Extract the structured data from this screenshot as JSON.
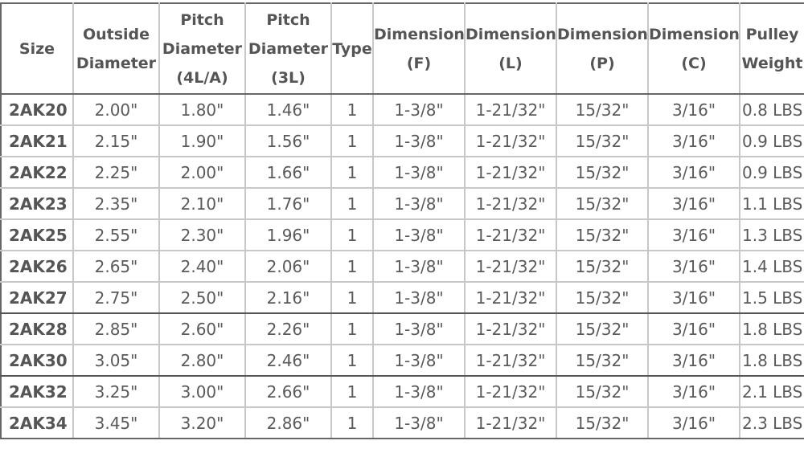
{
  "table": {
    "headers": [
      {
        "lines": [
          "Size"
        ]
      },
      {
        "lines": [
          "Outside",
          "Diameter"
        ]
      },
      {
        "lines": [
          "Pitch",
          "Diameter",
          "(4L/A)"
        ]
      },
      {
        "lines": [
          "Pitch",
          "Diameter",
          "(3L)"
        ]
      },
      {
        "lines": [
          "Type"
        ]
      },
      {
        "lines": [
          "Dimension",
          "(F)"
        ]
      },
      {
        "lines": [
          "Dimension",
          "(L)"
        ]
      },
      {
        "lines": [
          "Dimension",
          "(P)"
        ]
      },
      {
        "lines": [
          "Dimension",
          "(C)"
        ]
      },
      {
        "lines": [
          "Pulley",
          "Weight"
        ]
      }
    ],
    "rows": [
      [
        "2AK20",
        "2.00\"",
        "1.80\"",
        "1.46\"",
        "1",
        "1-3/8\"",
        "1-21/32\"",
        "15/32\"",
        "3/16\"",
        "0.8 LBS"
      ],
      [
        "2AK21",
        "2.15\"",
        "1.90\"",
        "1.56\"",
        "1",
        "1-3/8\"",
        "1-21/32\"",
        "15/32\"",
        "3/16\"",
        "0.9 LBS"
      ],
      [
        "2AK22",
        "2.25\"",
        "2.00\"",
        "1.66\"",
        "1",
        "1-3/8\"",
        "1-21/32\"",
        "15/32\"",
        "3/16\"",
        "0.9 LBS"
      ],
      [
        "2AK23",
        "2.35\"",
        "2.10\"",
        "1.76\"",
        "1",
        "1-3/8\"",
        "1-21/32\"",
        "15/32\"",
        "3/16\"",
        "1.1 LBS"
      ],
      [
        "2AK25",
        "2.55\"",
        "2.30\"",
        "1.96\"",
        "1",
        "1-3/8\"",
        "1-21/32\"",
        "15/32\"",
        "3/16\"",
        "1.3 LBS"
      ],
      [
        "2AK26",
        "2.65\"",
        "2.40\"",
        "2.06\"",
        "1",
        "1-3/8\"",
        "1-21/32\"",
        "15/32\"",
        "3/16\"",
        "1.4 LBS"
      ],
      [
        "2AK27",
        "2.75\"",
        "2.50\"",
        "2.16\"",
        "1",
        "1-3/8\"",
        "1-21/32\"",
        "15/32\"",
        "3/16\"",
        "1.5 LBS"
      ],
      [
        "2AK28",
        "2.85\"",
        "2.60\"",
        "2.26\"",
        "1",
        "1-3/8\"",
        "1-21/32\"",
        "15/32\"",
        "3/16\"",
        "1.8 LBS"
      ],
      [
        "2AK30",
        "3.05\"",
        "2.80\"",
        "2.46\"",
        "1",
        "1-3/8\"",
        "1-21/32\"",
        "15/32\"",
        "3/16\"",
        "1.8 LBS"
      ],
      [
        "2AK32",
        "3.25\"",
        "3.00\"",
        "2.66\"",
        "1",
        "1-3/8\"",
        "1-21/32\"",
        "15/32\"",
        "3/16\"",
        "2.1 LBS"
      ],
      [
        "2AK34",
        "3.45\"",
        "3.20\"",
        "2.86\"",
        "1",
        "1-3/8\"",
        "1-21/32\"",
        "15/32\"",
        "3/16\"",
        "2.3 LBS"
      ]
    ]
  }
}
